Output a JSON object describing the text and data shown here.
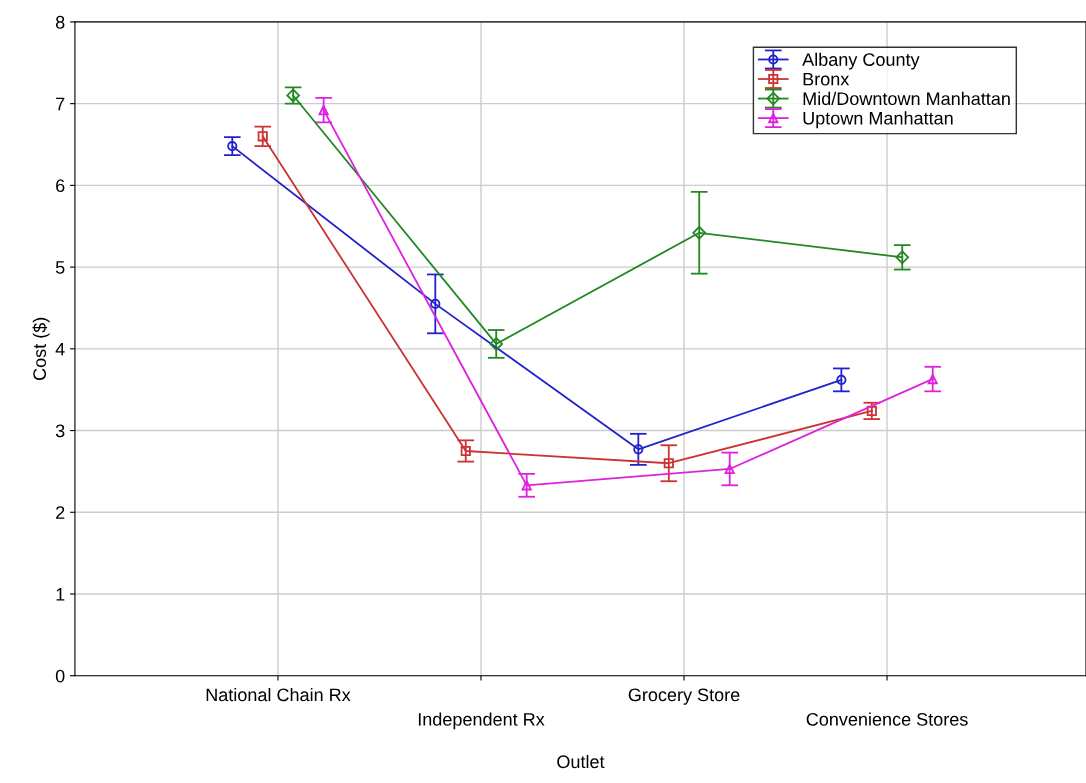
{
  "chart_data": {
    "type": "line",
    "xlabel": "Outlet",
    "ylabel": "Cost ($)",
    "categories": [
      "National Chain Rx",
      "Independent Rx",
      "Grocery Store",
      "Convenience Stores"
    ],
    "ylim": [
      0,
      8
    ],
    "yticks": [
      0,
      1,
      2,
      3,
      4,
      5,
      6,
      7,
      8
    ],
    "grid": true,
    "legend": "top right",
    "series": [
      {
        "name": "Albany County",
        "color": "#2222cc",
        "marker": "circle",
        "values": [
          6.48,
          4.55,
          2.77,
          3.62
        ],
        "errors": [
          0.11,
          0.36,
          0.19,
          0.14
        ]
      },
      {
        "name": "Bronx",
        "color": "#cc3333",
        "marker": "square",
        "values": [
          6.6,
          2.75,
          2.6,
          3.24
        ],
        "errors": [
          0.12,
          0.13,
          0.22,
          0.1
        ]
      },
      {
        "name": "Mid/Downtown Manhattan",
        "color": "#228822",
        "marker": "diamond",
        "values": [
          7.1,
          4.06,
          5.42,
          5.12
        ],
        "errors": [
          0.1,
          0.17,
          0.5,
          0.15
        ]
      },
      {
        "name": "Uptown Manhattan",
        "color": "#dd22dd",
        "marker": "triangle",
        "values": [
          6.92,
          2.33,
          2.53,
          3.63
        ],
        "errors": [
          0.15,
          0.14,
          0.2,
          0.15
        ]
      }
    ]
  }
}
